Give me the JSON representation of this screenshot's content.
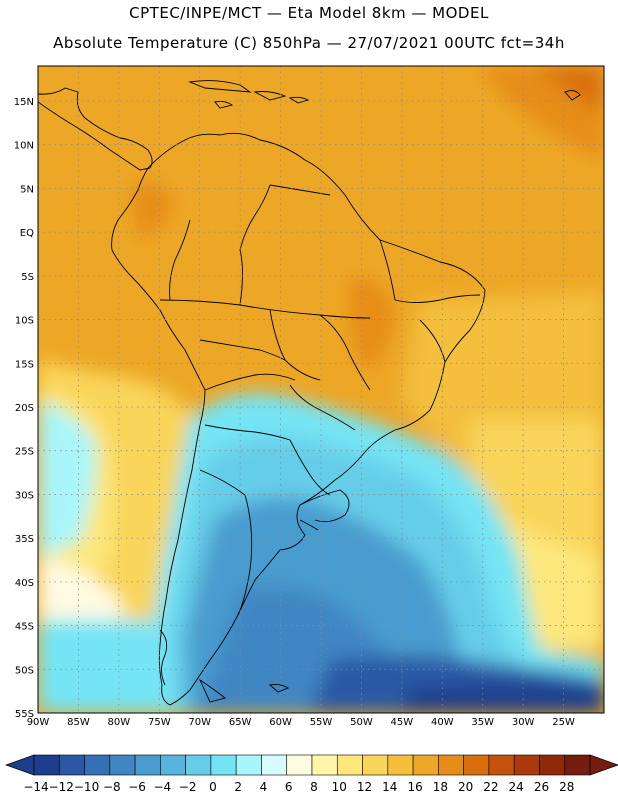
{
  "title": {
    "line1": "CPTEC/INPE/MCT  —  Eta Model 8km  —  MODEL",
    "line2": "Absolute Temperature (C) 850hPa — 27/07/2021 00UTC fct=34h"
  },
  "map": {
    "lat_labels": [
      "15N",
      "10N",
      "5N",
      "EQ",
      "5S",
      "10S",
      "15S",
      "20S",
      "25S",
      "30S",
      "35S",
      "40S",
      "45S",
      "50S",
      "55S"
    ],
    "lon_labels": [
      "90W",
      "85W",
      "80W",
      "75W",
      "70W",
      "65W",
      "60W",
      "55W",
      "50W",
      "45W",
      "40W",
      "35W",
      "30W",
      "25W"
    ],
    "lat_range": [
      -55,
      19
    ],
    "lon_range": [
      -90,
      -20
    ]
  },
  "colorbar": {
    "ticks": [
      "-14",
      "-12",
      "-10",
      "-8",
      "-6",
      "-4",
      "-2",
      "0",
      "2",
      "4",
      "6",
      "8",
      "10",
      "12",
      "14",
      "16",
      "18",
      "20",
      "22",
      "24",
      "26",
      "28"
    ],
    "colors": [
      "#1c3e8c",
      "#2a58a4",
      "#3570b5",
      "#3f86c3",
      "#4a9ccf",
      "#58b4dc",
      "#66cde9",
      "#74e4f4",
      "#a8f6fb",
      "#d8fbfd",
      "#fffbe2",
      "#fff6a8",
      "#fde77b",
      "#f9d55a",
      "#f3bf3c",
      "#eda726",
      "#e68d18",
      "#d86e0d",
      "#c4520b",
      "#aa3a0b",
      "#8e2a0a",
      "#751c10"
    ],
    "low_end_color": "#1c3e8c",
    "high_end_color": "#751c10"
  }
}
